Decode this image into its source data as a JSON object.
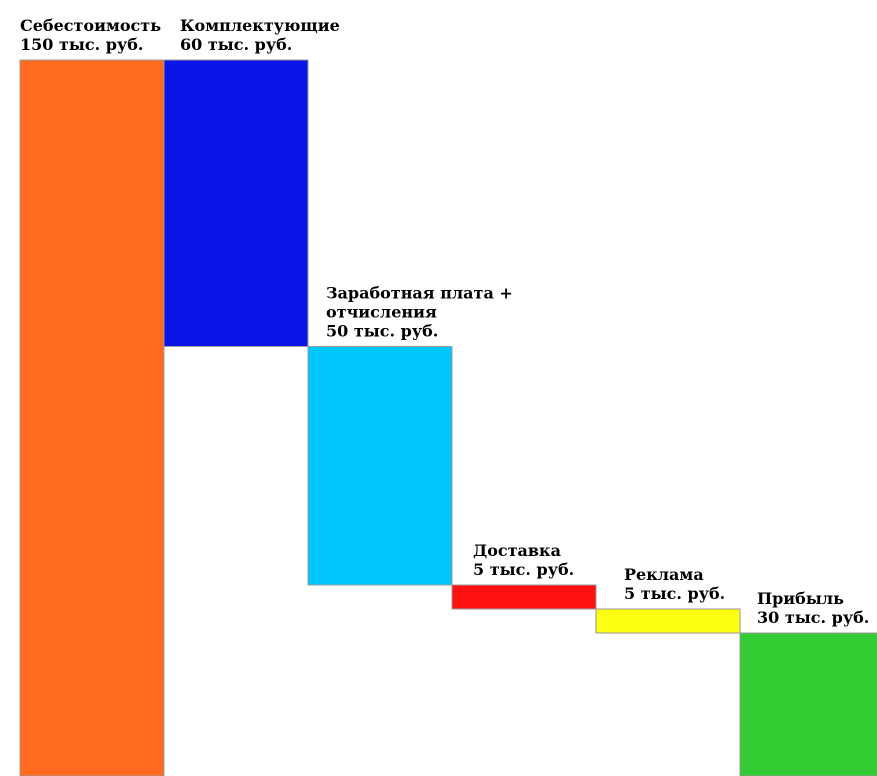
{
  "chart_data": {
    "type": "waterfall",
    "title": "",
    "xlabel": "",
    "ylabel": "",
    "unit": "тыс. руб.",
    "ylim": [
      0,
      150
    ],
    "categories": [
      "Себестоимость",
      "Комплектующие",
      "Заработная плата + отчисления",
      "Доставка",
      "Реклама",
      "Прибыль"
    ],
    "values": [
      150,
      60,
      50,
      5,
      5,
      30
    ],
    "bars": [
      {
        "label_lines": [
          "Себестоимость",
          "150 тыс. руб."
        ],
        "value": 150,
        "start": 0,
        "end": 150,
        "color": "#FF6A1F"
      },
      {
        "label_lines": [
          "Комплектующие",
          "60 тыс. руб."
        ],
        "value": 60,
        "start": 90,
        "end": 150,
        "color": "#0A14E6"
      },
      {
        "label_lines": [
          "Заработная плата +",
          "отчисления",
          "50 тыс. руб."
        ],
        "value": 50,
        "start": 40,
        "end": 90,
        "color": "#00C8FF"
      },
      {
        "label_lines": [
          "Доставка",
          "5 тыс. руб."
        ],
        "value": 5,
        "start": 35,
        "end": 40,
        "color": "#FF1010"
      },
      {
        "label_lines": [
          "Реклама",
          "5 тыс. руб."
        ],
        "value": 5,
        "start": 30,
        "end": 35,
        "color": "#FFFF10"
      },
      {
        "label_lines": [
          "Прибыль",
          "30 тыс. руб."
        ],
        "value": 30,
        "start": 0,
        "end": 30,
        "color": "#33CC33"
      }
    ],
    "grid": false,
    "legend": "none"
  }
}
